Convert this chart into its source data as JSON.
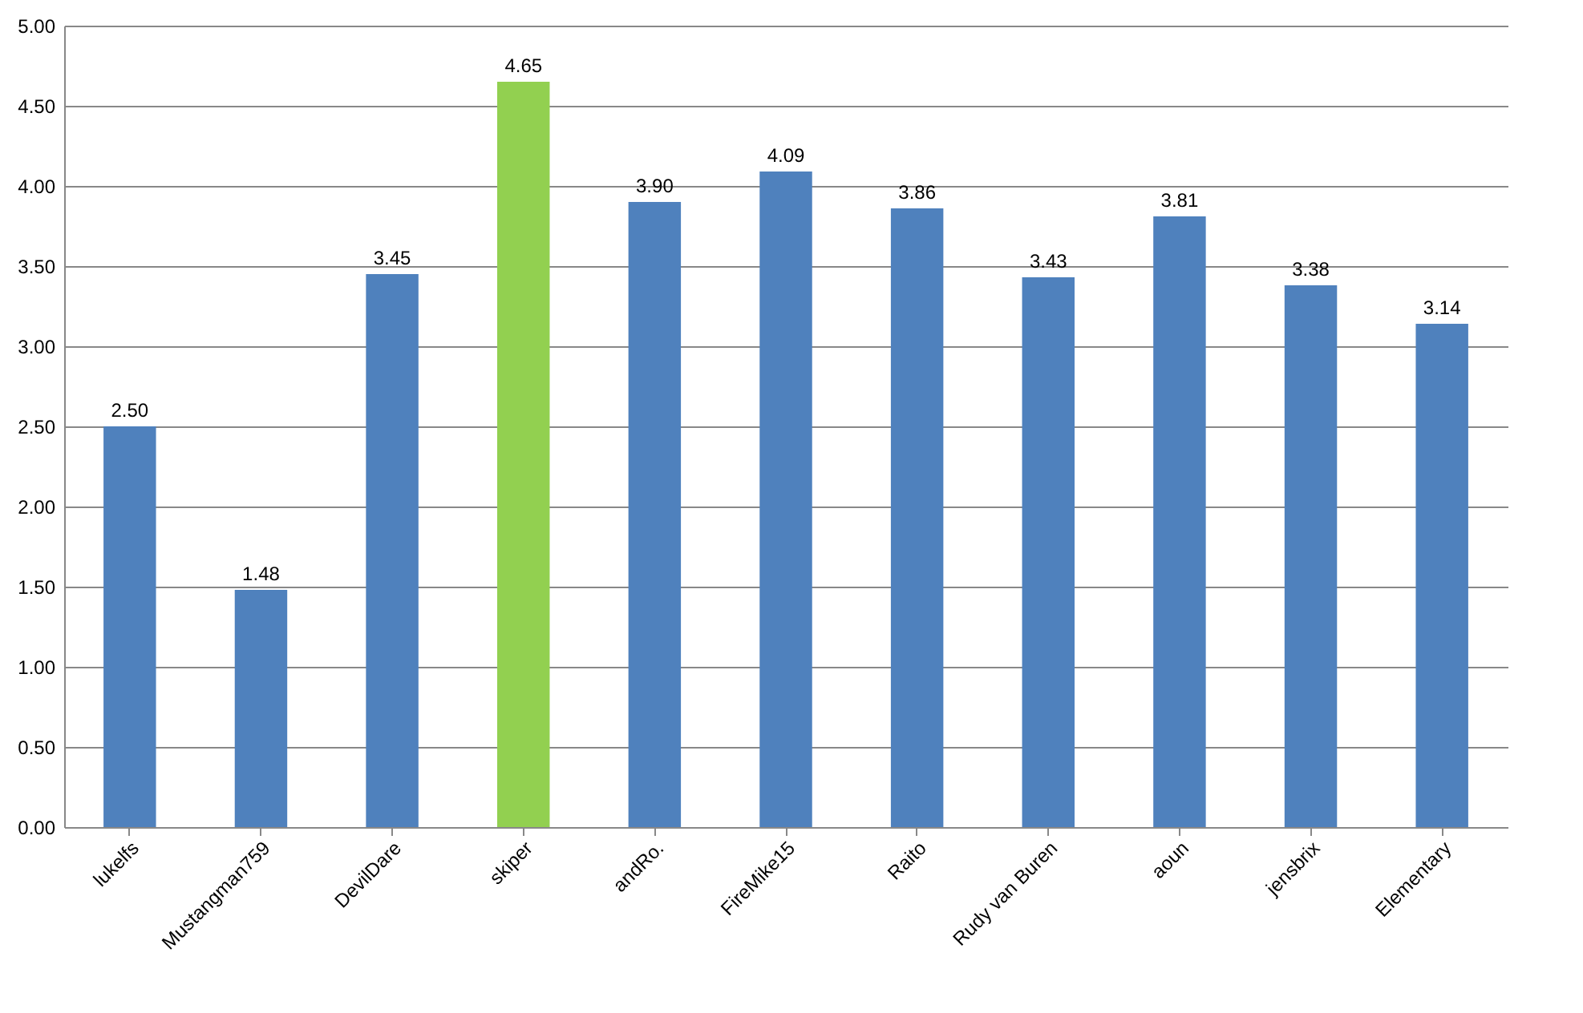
{
  "chart_data": {
    "type": "bar",
    "categories": [
      "lukelfs",
      "Mustangman759",
      "DevilDare",
      "skiper",
      "andRo.",
      "FireMike15",
      "Raito",
      "Rudy van Buren",
      "aoun",
      "jensbrix",
      "Elementary"
    ],
    "values": [
      2.5,
      1.48,
      3.45,
      4.65,
      3.9,
      4.09,
      3.86,
      3.43,
      3.81,
      3.38,
      3.14
    ],
    "colors": [
      "#4f81bd",
      "#4f81bd",
      "#4f81bd",
      "#92d050",
      "#4f81bd",
      "#4f81bd",
      "#4f81bd",
      "#4f81bd",
      "#4f81bd",
      "#4f81bd",
      "#4f81bd"
    ],
    "ylim": [
      0,
      5
    ],
    "yticks": [
      {
        "value": 0,
        "label": "0.00"
      },
      {
        "value": 0.5,
        "label": "0.50"
      },
      {
        "value": 1,
        "label": "1.00"
      },
      {
        "value": 1.5,
        "label": "1.50"
      },
      {
        "value": 2,
        "label": "2.00"
      },
      {
        "value": 2.5,
        "label": "2.50"
      },
      {
        "value": 3,
        "label": "3.00"
      },
      {
        "value": 3.5,
        "label": "3.50"
      },
      {
        "value": 4,
        "label": "4.00"
      },
      {
        "value": 4.5,
        "label": "4.50"
      },
      {
        "value": 5,
        "label": "5.00"
      }
    ],
    "value_labels": [
      "2.50",
      "1.48",
      "3.45",
      "4.65",
      "3.90",
      "4.09",
      "3.86",
      "3.43",
      "3.81",
      "3.38",
      "3.14"
    ],
    "grid": "y"
  }
}
